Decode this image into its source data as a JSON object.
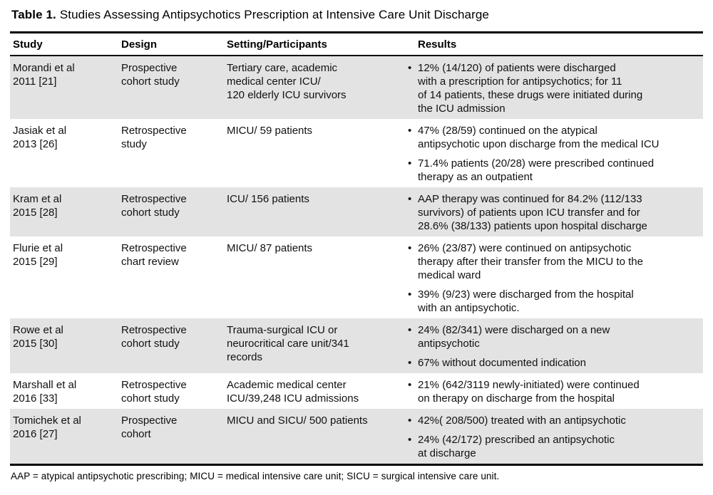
{
  "title": {
    "label": "Table 1.",
    "text": "Studies Assessing Antipsychotics Prescription at Intensive Care Unit Discharge"
  },
  "icons": {
    "bullet": "•"
  },
  "colors": {
    "shaded_row": "#e3e3e3",
    "rule": "#000000"
  },
  "table": {
    "columns": [
      "Study",
      "Design",
      "Setting/Participants",
      "Results"
    ],
    "rows": [
      {
        "study": "Morandi et al\n2011 [21]",
        "design": "Prospective\ncohort study",
        "setting": "Tertiary care, academic\nmedical center ICU/\n120 elderly ICU survivors",
        "results": [
          "12% (14/120) of patients were discharged\nwith a prescription for antipsychotics; for 11\nof 14 patients, these drugs were initiated during\nthe ICU admission"
        ]
      },
      {
        "study": "Jasiak et al\n2013 [26]",
        "design": "Retrospective\nstudy",
        "setting": "MICU/ 59 patients",
        "results": [
          "47% (28/59) continued on the atypical\nantipsychotic upon discharge from the medical ICU",
          "71.4% patients (20/28) were prescribed continued\ntherapy as an outpatient"
        ]
      },
      {
        "study": "Kram et al\n2015 [28]",
        "design": "Retrospective\ncohort study",
        "setting": "ICU/ 156 patients",
        "results": [
          "AAP therapy was continued for 84.2% (112/133\nsurvivors) of patients upon ICU transfer and for\n28.6% (38/133) patients upon hospital discharge"
        ]
      },
      {
        "study": "Flurie et al\n2015 [29]",
        "design": "Retrospective\nchart review",
        "setting": "MICU/ 87 patients",
        "results": [
          "26% (23/87) were continued on antipsychotic\ntherapy after their transfer from the MICU to the\nmedical ward",
          "39% (9/23) were discharged from the hospital\nwith an antipsychotic."
        ]
      },
      {
        "study": "Rowe et al\n2015 [30]",
        "design": "Retrospective\ncohort study",
        "setting": "Trauma-surgical ICU or\nneurocritical care unit/341\nrecords",
        "results": [
          "24% (82/341) were discharged on a new\nantipsychotic",
          "67% without documented indication"
        ]
      },
      {
        "study": "Marshall et al\n2016 [33]",
        "design": "Retrospective\ncohort study",
        "setting": "Academic medical center\nICU/39,248 ICU admissions",
        "results": [
          "21% (642/3119 newly-initiated) were continued\non therapy on discharge from the hospital"
        ]
      },
      {
        "study": "Tomichek et al\n2016 [27]",
        "design": "Prospective\ncohort",
        "setting": "MICU and SICU/ 500 patients",
        "results": [
          "42%( 208/500) treated with an antipsychotic",
          "24% (42/172) prescribed an antipsychotic\nat discharge"
        ]
      }
    ]
  },
  "footnote": "AAP = atypical antipsychotic prescribing; MICU = medical intensive care unit; SICU = surgical intensive care unit."
}
